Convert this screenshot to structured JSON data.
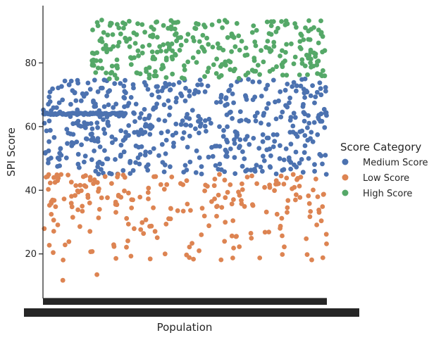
{
  "chart_data": {
    "type": "scatter",
    "style": "categorical strip plot (jittered)",
    "xlabel": "Population",
    "ylabel": "SPI Score",
    "ylim": [
      6,
      98
    ],
    "yticks": [
      20,
      40,
      60,
      80
    ],
    "x_tick_labels_note": "tick labels overlap into an illegible dense band",
    "grid": false,
    "legend": {
      "title": "Score Category",
      "placement": "right",
      "entries": [
        "Medium Score",
        "Low Score",
        "High Score"
      ]
    },
    "colors": {
      "Medium Score": "#4c72b0",
      "Low Score": "#dd8452",
      "High Score": "#55a868"
    },
    "series": [
      {
        "name": "Medium Score",
        "y_range": [
          45,
          75
        ],
        "approx_count": 520,
        "constant_band": {
          "value": 64,
          "x_range": [
            0,
            0.29
          ]
        }
      },
      {
        "name": "Low Score",
        "y_range": [
          11.7,
          45
        ],
        "approx_count": 230,
        "notable_values": [
          11.7,
          13.5,
          19.3,
          20.0,
          21.0
        ]
      },
      {
        "name": "High Score",
        "y_range": [
          75,
          93.5
        ],
        "approx_count": 300,
        "x_range_start": 0.17
      }
    ]
  }
}
